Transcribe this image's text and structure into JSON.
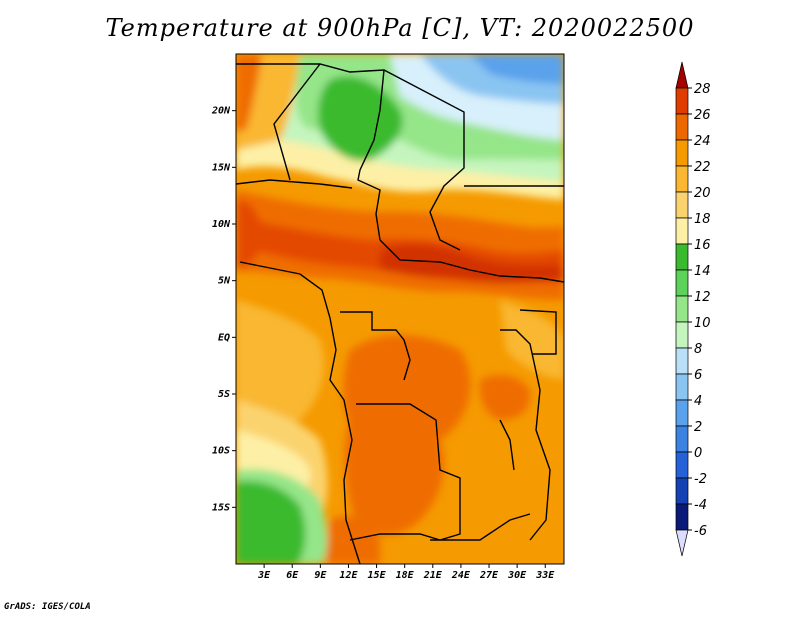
{
  "title": "Temperature at 900hPa [C], VT: 2020022500",
  "credit": "GrADS: IGES/COLA",
  "map": {
    "lat_range": [
      -20,
      25
    ],
    "lon_range": [
      0,
      35
    ],
    "lat_labels": [
      {
        "lat": 20,
        "text": "20N"
      },
      {
        "lat": 15,
        "text": "15N"
      },
      {
        "lat": 10,
        "text": "10N"
      },
      {
        "lat": 5,
        "text": "5N"
      },
      {
        "lat": 0,
        "text": "EQ"
      },
      {
        "lat": -5,
        "text": "5S"
      },
      {
        "lat": -10,
        "text": "10S"
      },
      {
        "lat": -15,
        "text": "15S"
      }
    ],
    "lon_labels": [
      {
        "lon": 3,
        "text": "3E"
      },
      {
        "lon": 6,
        "text": "6E"
      },
      {
        "lon": 9,
        "text": "9E"
      },
      {
        "lon": 12,
        "text": "12E"
      },
      {
        "lon": 15,
        "text": "15E"
      },
      {
        "lon": 18,
        "text": "18E"
      },
      {
        "lon": 21,
        "text": "21E"
      },
      {
        "lon": 24,
        "text": "24E"
      },
      {
        "lon": 27,
        "text": "27E"
      },
      {
        "lon": 30,
        "text": "30E"
      },
      {
        "lon": 33,
        "text": "33E"
      }
    ]
  },
  "colorbar": {
    "levels": [
      "28",
      "26",
      "24",
      "22",
      "20",
      "18",
      "16",
      "14",
      "12",
      "10",
      "8",
      "6",
      "4",
      "2",
      "0",
      "-2",
      "-4",
      "-6"
    ],
    "colors": [
      "#a50000",
      "#e03c00",
      "#ee6800",
      "#f59a00",
      "#f9b732",
      "#fbd36e",
      "#fdf0a6",
      "#3aba2e",
      "#5dd25a",
      "#95e589",
      "#c5f5be",
      "#bae0f7",
      "#8ac5f2",
      "#5aa2eb",
      "#3c82e1",
      "#2562d7",
      "#1442b4",
      "#0a1a78",
      "#dcdcff"
    ]
  },
  "colors": {
    "warm_core": "#d23200",
    "hot": "#e44800",
    "orange": "#ef6d00",
    "orange_light": "#f59a00",
    "amber": "#f9b732",
    "yellow": "#fbd36e",
    "pale_yellow": "#fdf0a6",
    "green": "#3aba2e",
    "green_light": "#95e589",
    "pale_green": "#c5f5be",
    "pale_blue": "#d8f0fb",
    "blue_light": "#8ac5f2",
    "blue": "#5aa2eb"
  }
}
